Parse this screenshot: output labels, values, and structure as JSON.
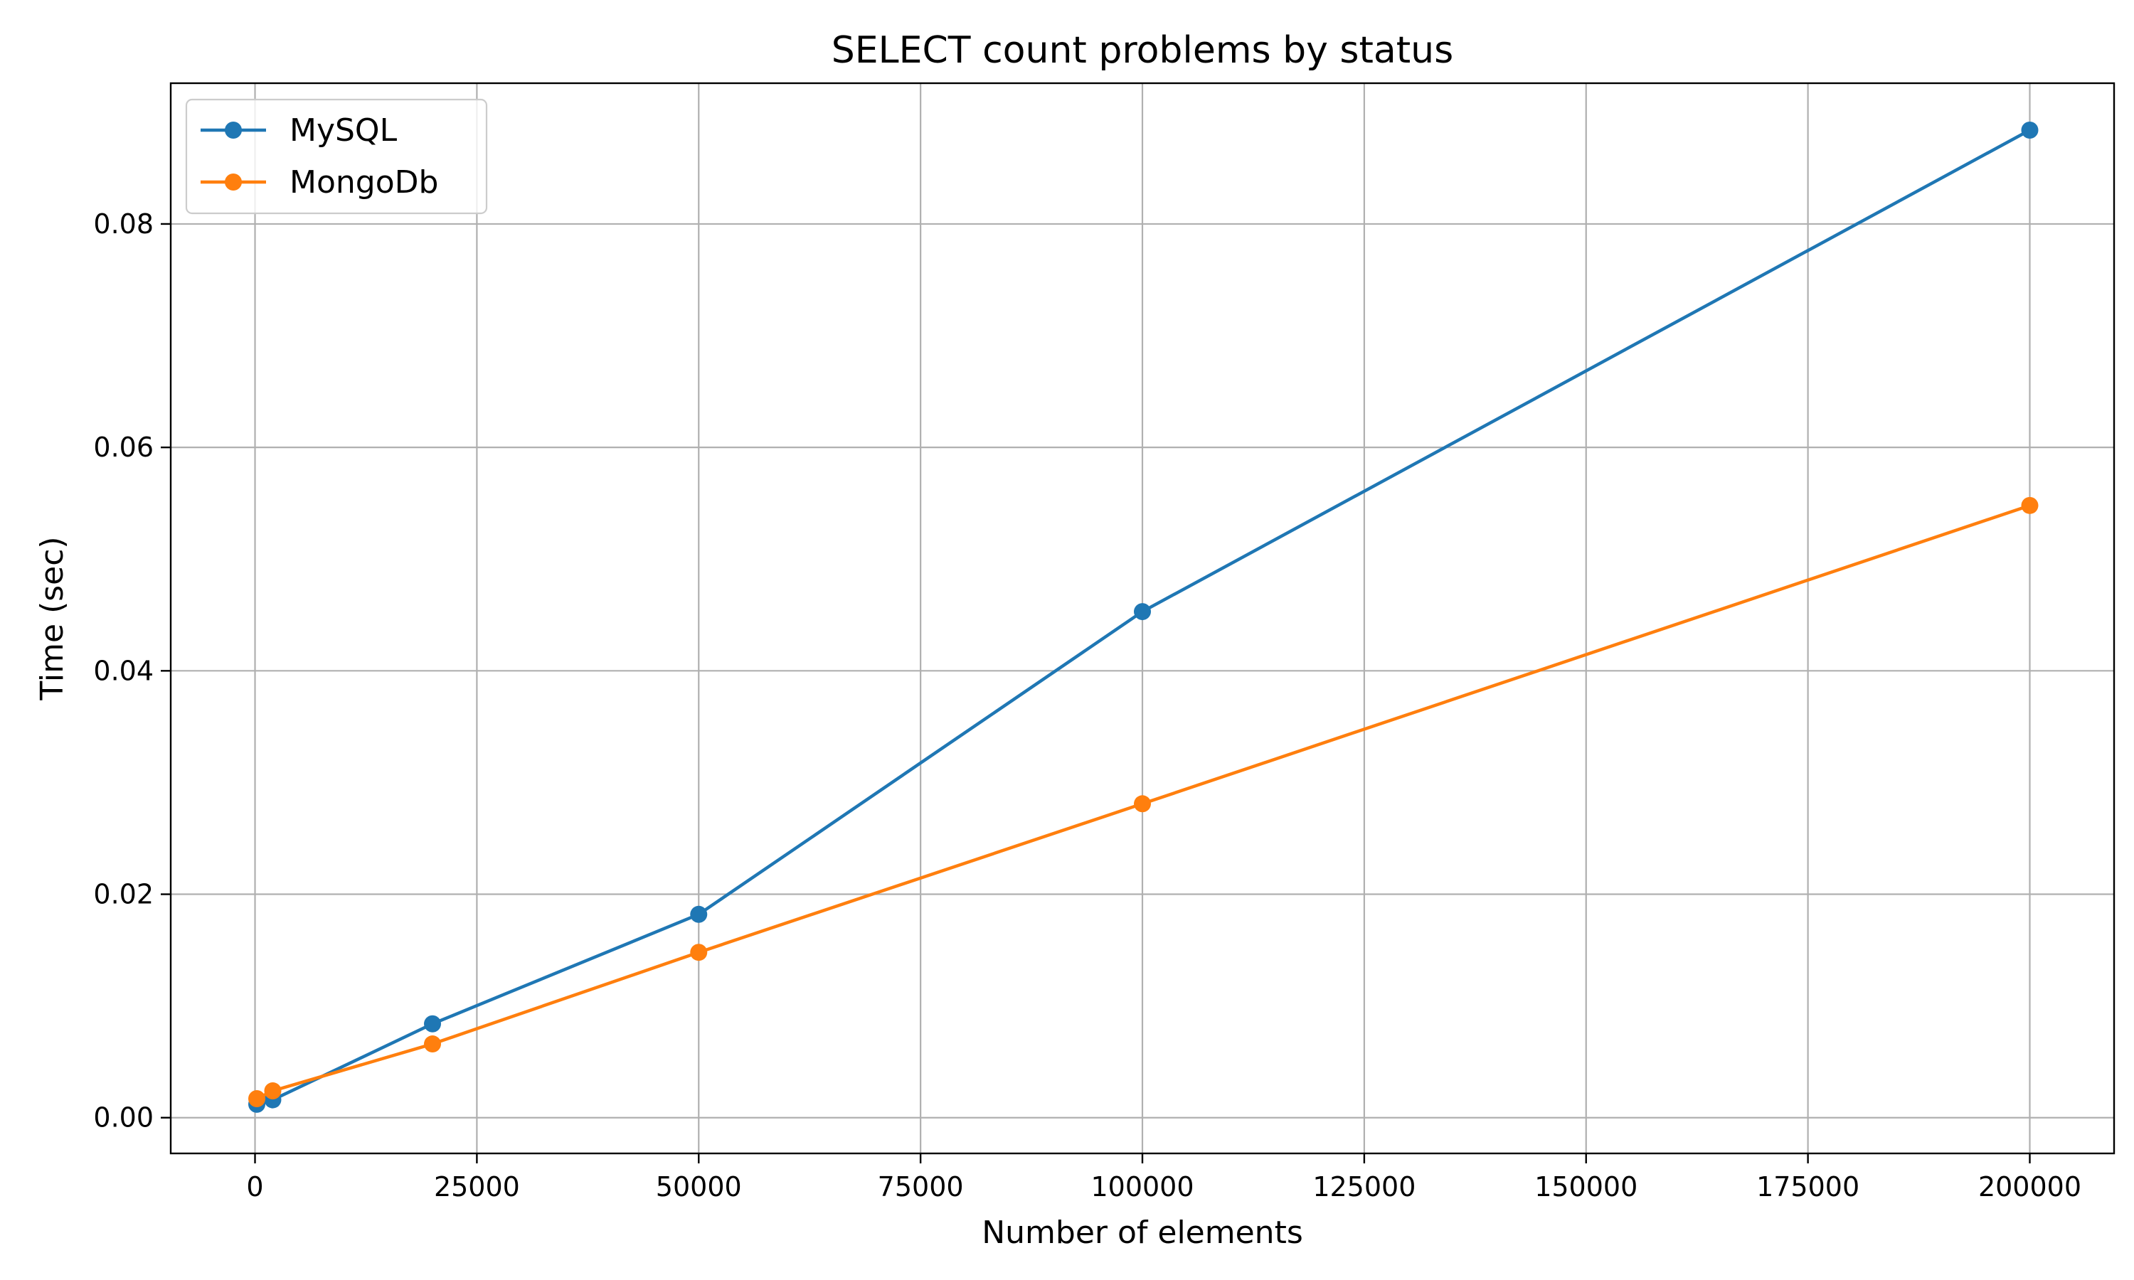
{
  "chart_data": {
    "type": "line",
    "title": "SELECT count problems by status",
    "xlabel": "Number of elements",
    "ylabel": "Time (sec)",
    "xlim": [
      -9500,
      209500
    ],
    "ylim": [
      -0.0032,
      0.0926
    ],
    "xticks": [
      0,
      25000,
      50000,
      75000,
      100000,
      125000,
      150000,
      175000,
      200000
    ],
    "xtick_labels": [
      "0",
      "25000",
      "50000",
      "75000",
      "100000",
      "125000",
      "150000",
      "175000",
      "200000"
    ],
    "yticks": [
      0.0,
      0.02,
      0.04,
      0.06,
      0.08
    ],
    "ytick_labels": [
      "0.00",
      "0.02",
      "0.04",
      "0.06",
      "0.08"
    ],
    "grid": true,
    "legend_position": "upper-left",
    "series": [
      {
        "name": "MySQL",
        "color": "#1f77b4",
        "x": [
          200,
          2000,
          20000,
          50000,
          100000,
          200000
        ],
        "y": [
          0.0012,
          0.0016,
          0.0084,
          0.0182,
          0.0453,
          0.0884
        ]
      },
      {
        "name": "MongoDb",
        "color": "#ff7f0e",
        "x": [
          200,
          2000,
          20000,
          50000,
          100000,
          200000
        ],
        "y": [
          0.0017,
          0.0024,
          0.0066,
          0.0148,
          0.0281,
          0.0548
        ]
      }
    ]
  }
}
